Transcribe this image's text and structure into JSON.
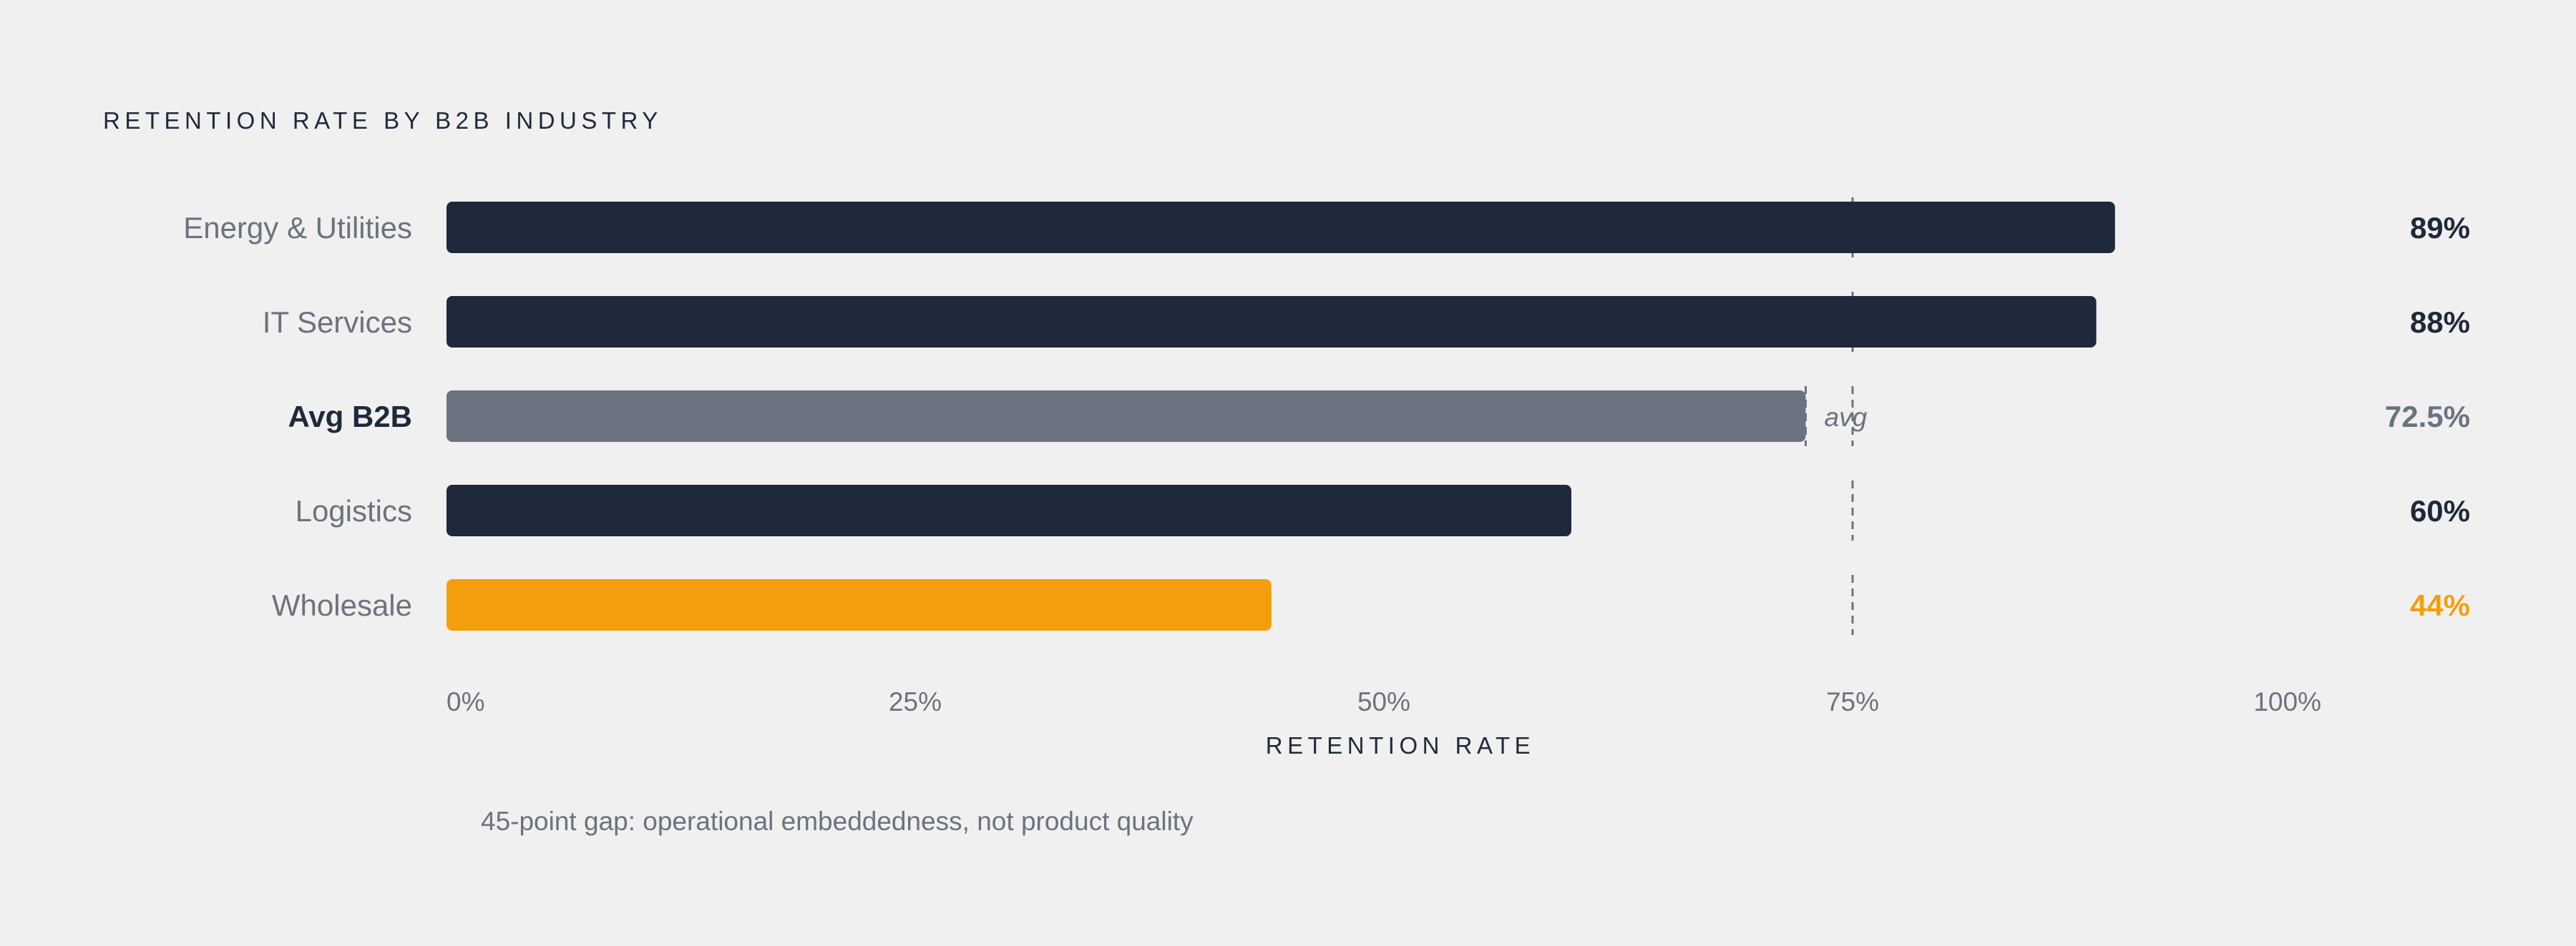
{
  "chart_data": {
    "type": "bar",
    "orientation": "horizontal",
    "title": "RETENTION RATE BY B2B INDUSTRY",
    "xlabel": "RETENTION RATE",
    "xlim": [
      0,
      100
    ],
    "ticks": [
      "0%",
      "25%",
      "50%",
      "75%",
      "100%"
    ],
    "tick_values": [
      0,
      25,
      50,
      75,
      100
    ],
    "categories": [
      "Energy & Utilities",
      "IT Services",
      "Avg B2B",
      "Logistics",
      "Wholesale"
    ],
    "values": [
      89,
      88,
      72.5,
      60,
      44
    ],
    "value_labels": [
      "89%",
      "88%",
      "72.5%",
      "60%",
      "44%"
    ],
    "bar_colors": [
      "#1e293b",
      "#1e293b",
      "#6b7280",
      "#1e293b",
      "#f59e0b"
    ],
    "value_label_colors": [
      "#1e293b",
      "#1e293b",
      "#6b7280",
      "#1e293b",
      "#f59e0b"
    ],
    "highlight_category": "Avg B2B",
    "reference_line": {
      "value": 75,
      "style": "dashed",
      "color": "#6b7280"
    },
    "avg_annotation": "avg",
    "note": "45-point gap: operational embeddedness, not product quality",
    "grid": false
  }
}
